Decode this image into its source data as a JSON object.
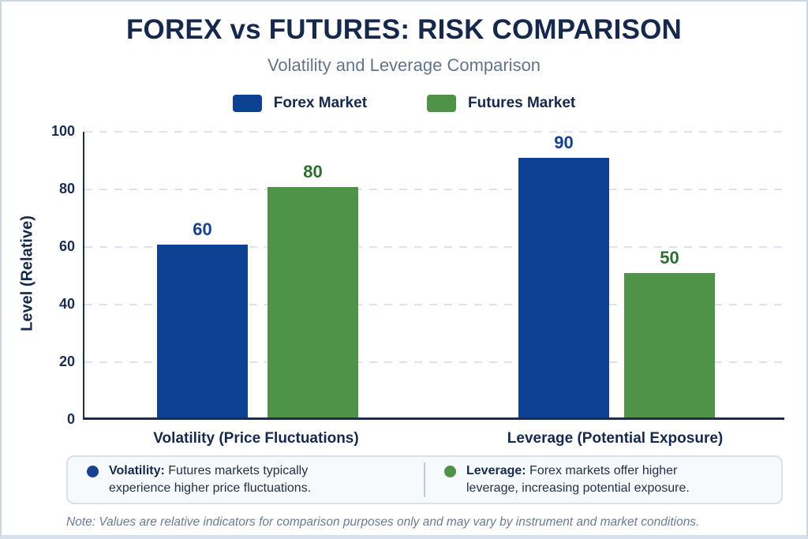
{
  "title": "FOREX vs FUTURES: RISK COMPARISON",
  "subtitle": "Volatility and Leverage Comparison",
  "chart_data": {
    "type": "bar",
    "categories": [
      "Volatility (Price Fluctuations)",
      "Leverage (Potential Exposure)"
    ],
    "series": [
      {
        "name": "Forex Market",
        "color": "#0d4191",
        "label_color": "#17418f",
        "values": [
          60,
          90
        ]
      },
      {
        "name": "Futures Market",
        "color": "#4e9347",
        "label_color": "#2d6e31",
        "values": [
          80,
          50
        ]
      }
    ],
    "title": "FOREX vs FUTURES: RISK COMPARISON",
    "subtitle": "Volatility and Leverage Comparison",
    "xlabel": "",
    "ylabel": "Level (Relative)",
    "ylim": [
      0,
      100
    ],
    "yticks": [
      0,
      20,
      40,
      60,
      80,
      100
    ],
    "grid": "horizontal-dashed",
    "legend_position": "top"
  },
  "notes": [
    {
      "term": "Volatility:",
      "text": "Futures markets typically experience higher price fluctuations.",
      "color": "#15418e"
    },
    {
      "term": "Leverage:",
      "text": "Forex markets offer higher leverage, increasing potential exposure.",
      "color": "#4e9347"
    }
  ],
  "footnote": "Note: Values are relative indicators for comparison purposes only and may vary by instrument and market conditions."
}
